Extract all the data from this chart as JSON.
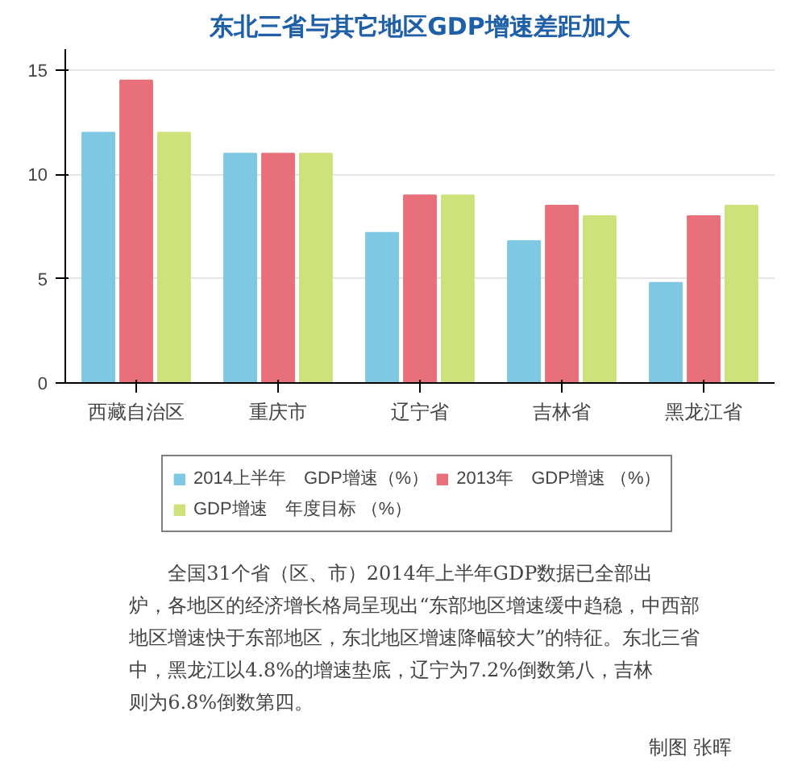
{
  "chart_data": {
    "type": "bar",
    "title": "东北三省与其它地区GDP增速差距加大",
    "categories": [
      "西藏自治区",
      "重庆市",
      "辽宁省",
      "吉林省",
      "黑龙江省"
    ],
    "series": [
      {
        "name": "2014上半年　GDP增速（%）",
        "color": "#7ec8e3",
        "values": [
          12,
          11,
          7.2,
          6.8,
          4.8
        ]
      },
      {
        "name": "2013年　GDP增速 （%）",
        "color": "#e8707a",
        "values": [
          14.5,
          11,
          9,
          8.5,
          8
        ]
      },
      {
        "name": "GDP增速　年度目标 （%）",
        "color": "#cde27a",
        "values": [
          12,
          11,
          9,
          8,
          8.5
        ]
      }
    ],
    "ylim": [
      0,
      16
    ],
    "yticks": [
      0,
      5,
      10,
      15
    ],
    "grid": "y",
    "legend": "bottom",
    "annotations": [
      "全国31个省（区、市）2014年上半年GDP数据已全部出炉，各地区的经济增长格局呈现出“东部地区增速缓中趋稳，中西部地区增速快于东部地区，东北地区增速降幅较大”的特征。东北三省中，黑龙江以4.8%的增速垫底，辽宁为7.2%倒数第八，吉林则为6.8%倒数第四。",
      "制图 张晖"
    ]
  }
}
